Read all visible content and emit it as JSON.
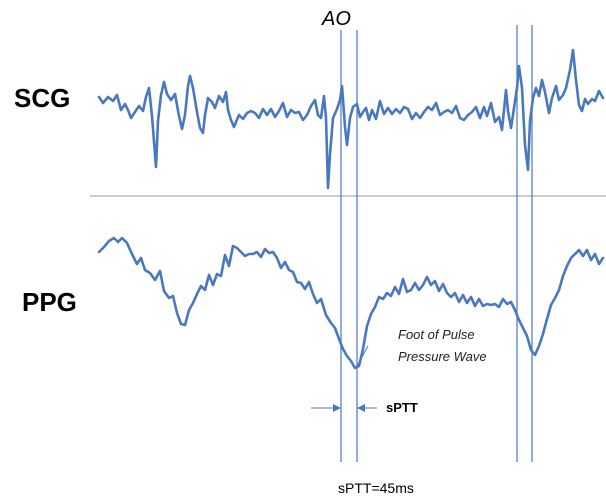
{
  "labels": {
    "scg": "SCG",
    "ppg": "PPG",
    "ao": "AO",
    "foot_line1": "Foot of Pulse",
    "foot_line2": "Pressure Wave",
    "sptt": "sPTT",
    "sptt_value": "sPTT=45ms"
  },
  "colors": {
    "signal": "#4a78bf",
    "separator": "#9a9a9a",
    "text": "#000000"
  }
}
